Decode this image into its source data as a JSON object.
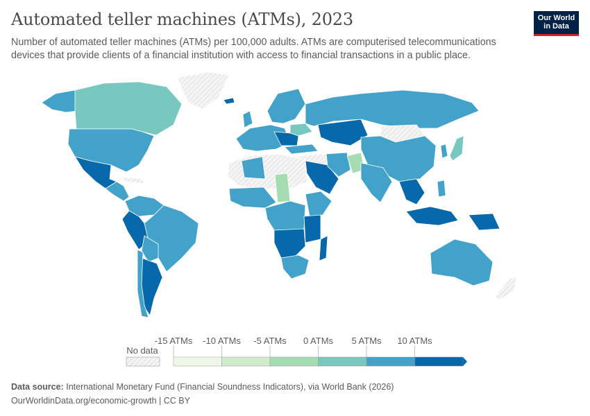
{
  "header": {
    "title": "Automated teller machines (ATMs), 2023",
    "subtitle": "Number of automated teller machines (ATMs) per 100,000 adults. ATMs are computerised telecommunications devices that provide clients of a financial institution with access to financial transactions in a public place."
  },
  "logo": {
    "line1": "Our World",
    "line2": "in Data"
  },
  "legend": {
    "no_data_label": "No data",
    "no_data_color": "#f2f2f2",
    "tick_labels": [
      "-15 ATMs",
      "-10 ATMs",
      "-5 ATMs",
      "0 ATMs",
      "5 ATMs",
      "10 ATMs"
    ],
    "bins": [
      {
        "color": "#eef7e8"
      },
      {
        "color": "#cfeccc"
      },
      {
        "color": "#a6dcb2"
      },
      {
        "color": "#79c8c0"
      },
      {
        "color": "#43a2ca"
      },
      {
        "color": "#0868ac"
      }
    ]
  },
  "map_colors": {
    "land_no_data": "#f2f2f2",
    "border": "#ffffff",
    "light": "#a6dcb2",
    "teal": "#79c8c0",
    "blue": "#43a2ca",
    "dark": "#0868ac"
  },
  "footer": {
    "source_label": "Data source:",
    "source_text": "International Monetary Fund (Financial Soundness Indicators), via World Bank (2026)",
    "url": "OurWorldinData.org/economic-growth | CC BY"
  }
}
